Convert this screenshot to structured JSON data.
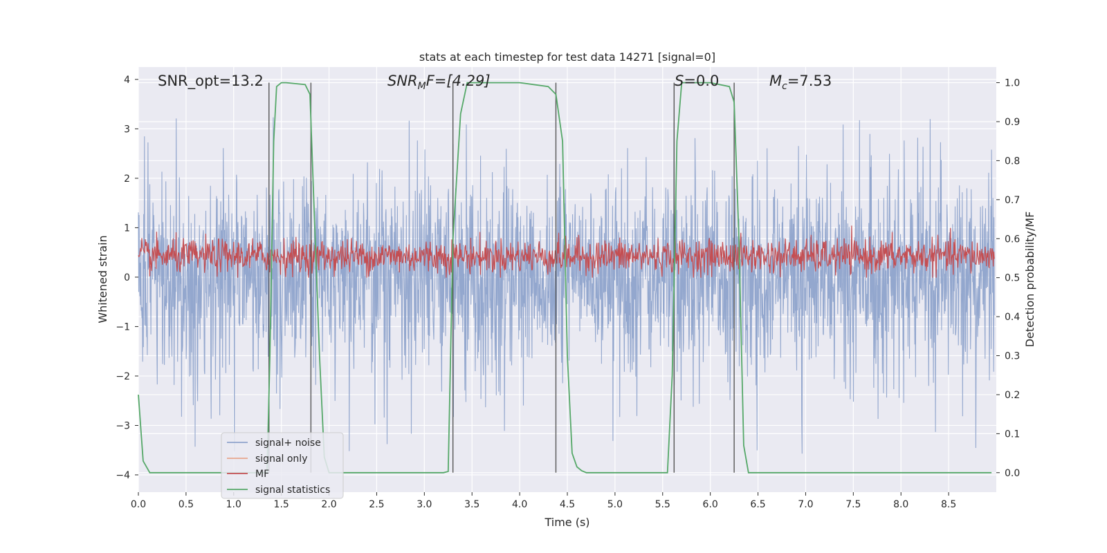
{
  "chart_data": {
    "type": "line",
    "title": "stats at each timestep for test data 14271 [signal=0]",
    "xlabel": "Time (s)",
    "ylabel": "Whitened strain",
    "ylabel_right": "Detection probability/MF",
    "xlim": [
      0.0,
      9.0
    ],
    "ylim": [
      -4.35,
      4.25
    ],
    "ylim_right": [
      -0.05,
      1.04
    ],
    "x_ticks": [
      "0.0",
      "0.5",
      "1.0",
      "1.5",
      "2.0",
      "2.5",
      "3.0",
      "3.5",
      "4.0",
      "4.5",
      "5.0",
      "5.5",
      "6.0",
      "6.5",
      "7.0",
      "7.5",
      "8.0",
      "8.5"
    ],
    "y_ticks": [
      "4",
      "3",
      "2",
      "1",
      "0",
      "−1",
      "−2",
      "−3",
      "−4"
    ],
    "y_right_ticks": [
      "1.0",
      "0.9",
      "0.8",
      "0.7",
      "0.6",
      "0.5",
      "0.4",
      "0.3",
      "0.2",
      "0.1",
      "0.0"
    ],
    "grid": true,
    "legend_position": "lower left",
    "annotations": {
      "snr_opt": "SNR_opt=13.2",
      "snr_mf_base": "SNR",
      "snr_mf_sub": "M",
      "snr_mf_rest": "F=[4.29]",
      "s_base": "S",
      "s_rest": "=0.0",
      "mc_base": "M",
      "mc_sub": "c",
      "mc_rest": "=7.53"
    },
    "series": [
      {
        "name": "signal+ noise",
        "color": "#8ea3cb",
        "description": "dense noise trace, roughly within ±2.5 with spikes to ±3.7",
        "envelope": {
          "typical": 2.2,
          "spikes": 3.6
        }
      },
      {
        "name": "signal only",
        "color": "#e8a68c",
        "values": []
      },
      {
        "name": "MF",
        "color": "#c44e52",
        "axis": "right",
        "description": "matched-filter output fluctuating roughly between 0.50 and 0.62",
        "range": [
          0.5,
          0.62
        ]
      },
      {
        "name": "signal statistics",
        "color": "#55a868",
        "axis": "right",
        "x": [
          0.0,
          0.05,
          0.12,
          0.2,
          1.35,
          1.38,
          1.42,
          1.45,
          1.5,
          1.55,
          1.75,
          1.8,
          1.84,
          1.9,
          1.95,
          2.0,
          2.05,
          3.2,
          3.25,
          3.3,
          3.38,
          3.45,
          4.0,
          4.3,
          4.38,
          4.45,
          4.5,
          4.55,
          4.6,
          4.65,
          4.7,
          4.8,
          5.55,
          5.6,
          5.65,
          5.7,
          6.0,
          6.2,
          6.25,
          6.3,
          6.35,
          6.4,
          8.95
        ],
        "y": [
          0.2,
          0.03,
          0.0,
          0.0,
          0.0,
          0.3,
          0.85,
          0.99,
          1.0,
          1.0,
          0.995,
          0.97,
          0.7,
          0.3,
          0.04,
          0.0,
          0.0,
          0.0,
          0.003,
          0.6,
          0.92,
          1.0,
          1.0,
          0.99,
          0.97,
          0.85,
          0.3,
          0.05,
          0.015,
          0.005,
          0.0,
          0.0,
          0.0,
          0.25,
          0.85,
          1.0,
          1.0,
          0.99,
          0.95,
          0.6,
          0.07,
          0.0,
          0.0
        ]
      }
    ],
    "vertical_markers": [
      1.37,
      1.81,
      3.3,
      4.38,
      5.62,
      6.25
    ]
  }
}
